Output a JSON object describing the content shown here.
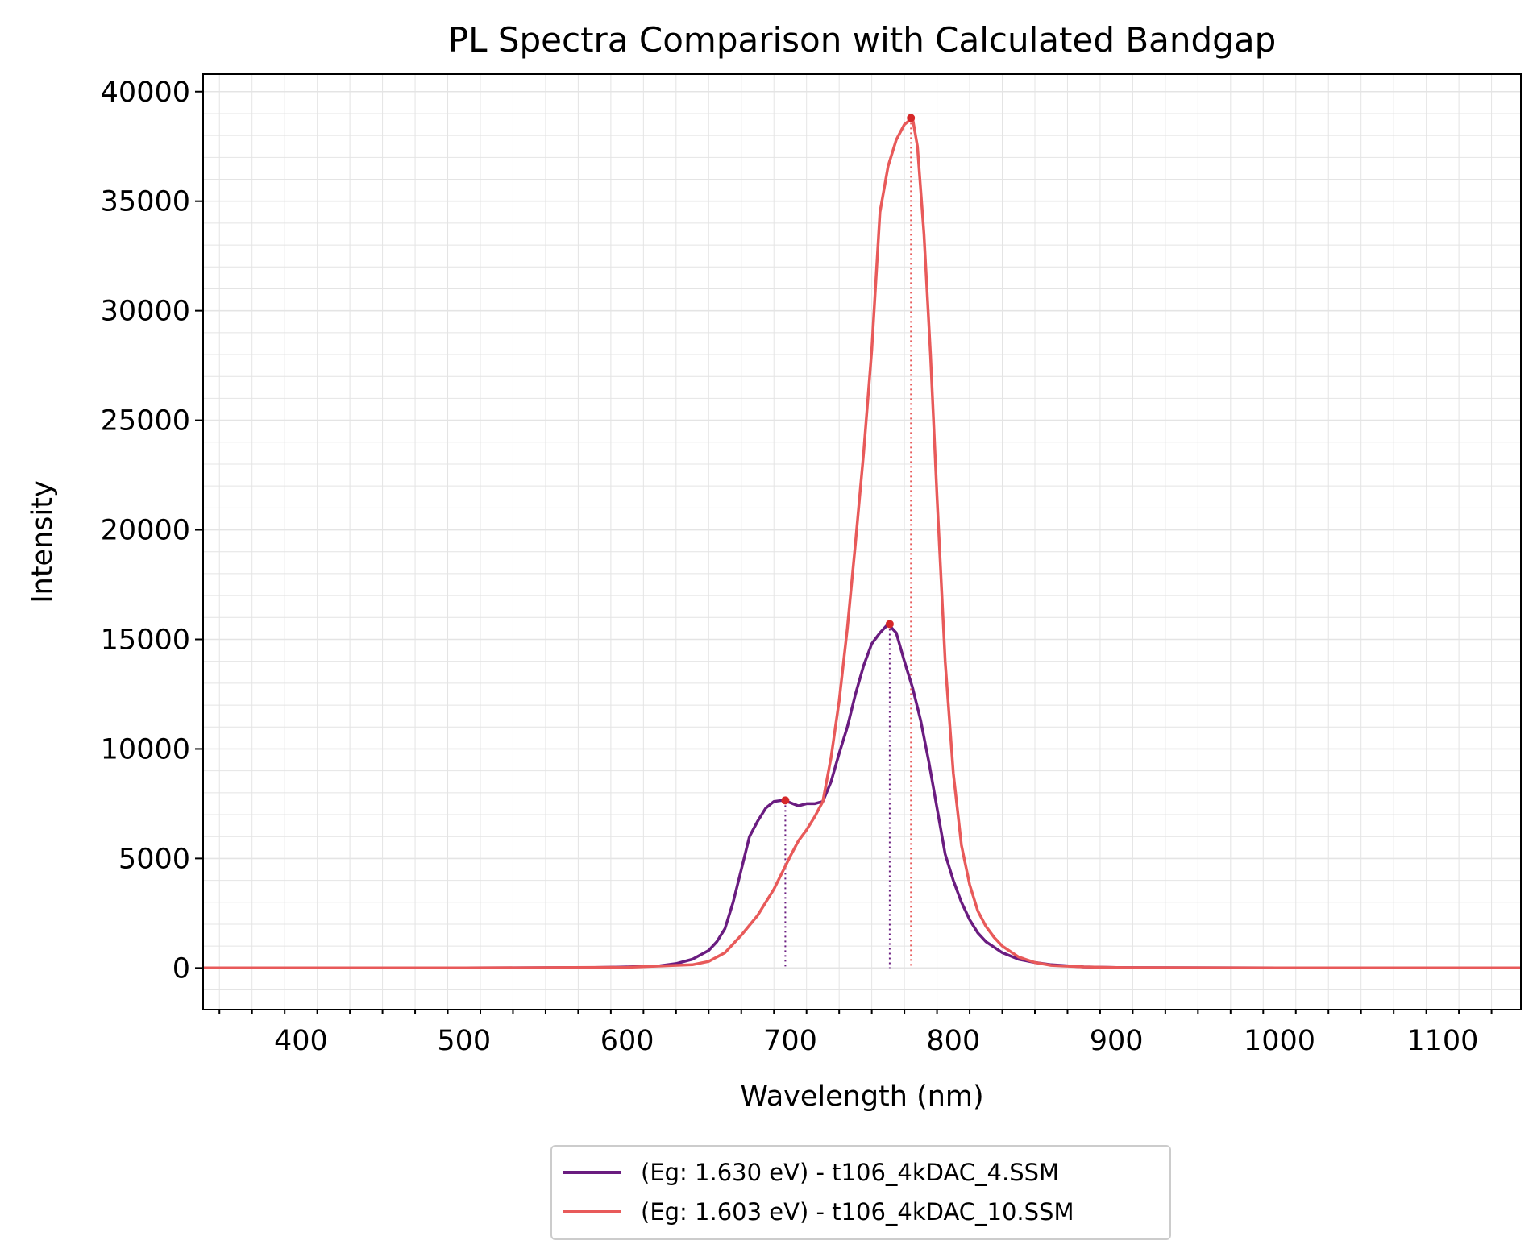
{
  "chart_data": {
    "type": "line",
    "title": "PL Spectra Comparison with Calculated Bandgap",
    "xlabel": "Wavelength (nm)",
    "ylabel": "Intensity",
    "xlim": [
      340,
      1148
    ],
    "ylim": [
      -1900,
      40800
    ],
    "xticks": [
      400,
      500,
      600,
      700,
      800,
      900,
      1000,
      1100
    ],
    "xtick_labels": [
      "400",
      "500",
      "600",
      "700",
      "800",
      "900",
      "1000",
      "1100"
    ],
    "yticks": [
      0,
      5000,
      10000,
      15000,
      20000,
      25000,
      30000,
      35000,
      40000
    ],
    "ytick_labels": [
      "0",
      "5000",
      "10000",
      "15000",
      "20000",
      "25000",
      "30000",
      "35000",
      "40000"
    ],
    "grid": true,
    "legend_position": "below-center",
    "series": [
      {
        "name": "(Eg: 1.630 eV) - t106_4kDAC_4.SSM",
        "color": "#6a1c80",
        "x": [
          340,
          400,
          500,
          580,
          600,
          620,
          630,
          640,
          650,
          655,
          660,
          665,
          670,
          675,
          680,
          685,
          690,
          695,
          700,
          705,
          710,
          715,
          720,
          725,
          730,
          735,
          740,
          745,
          750,
          755,
          760,
          765,
          770,
          775,
          780,
          785,
          790,
          795,
          800,
          805,
          810,
          815,
          820,
          830,
          840,
          850,
          860,
          880,
          900,
          1000,
          1100,
          1148
        ],
        "y": [
          0,
          0,
          0,
          20,
          50,
          100,
          200,
          400,
          800,
          1200,
          1800,
          3000,
          4500,
          6000,
          6700,
          7300,
          7600,
          7650,
          7550,
          7400,
          7500,
          7500,
          7600,
          8500,
          9800,
          11000,
          12500,
          13800,
          14800,
          15300,
          15700,
          15300,
          14000,
          12800,
          11300,
          9400,
          7300,
          5200,
          4000,
          3000,
          2200,
          1600,
          1200,
          700,
          400,
          250,
          150,
          50,
          20,
          0,
          0,
          0
        ]
      },
      {
        "name": "(Eg: 1.603 eV) - t106_4kDAC_10.SSM",
        "color": "#e85a5a",
        "x": [
          340,
          400,
          500,
          600,
          640,
          650,
          660,
          670,
          680,
          690,
          700,
          705,
          710,
          715,
          720,
          725,
          730,
          735,
          740,
          745,
          750,
          755,
          760,
          765,
          770,
          775,
          778,
          782,
          786,
          790,
          795,
          800,
          805,
          810,
          815,
          820,
          825,
          830,
          840,
          850,
          860,
          880,
          900,
          1000,
          1100,
          1148
        ],
        "y": [
          0,
          0,
          0,
          30,
          150,
          300,
          700,
          1500,
          2400,
          3600,
          5100,
          5800,
          6300,
          6900,
          7600,
          9600,
          12200,
          15500,
          19400,
          23500,
          28200,
          34500,
          36600,
          37800,
          38500,
          38800,
          37500,
          33500,
          28000,
          21500,
          14000,
          8900,
          5600,
          3800,
          2600,
          1900,
          1400,
          1000,
          500,
          250,
          120,
          50,
          20,
          0,
          0,
          0
        ]
      }
    ],
    "peak_markers": [
      {
        "x": 697,
        "y": 7650,
        "color": "#6a1c80"
      },
      {
        "x": 761,
        "y": 15700,
        "color": "#6a1c80"
      },
      {
        "x": 774,
        "y": 38800,
        "color": "#e85a5a"
      }
    ],
    "marker_color": "#d62728"
  }
}
